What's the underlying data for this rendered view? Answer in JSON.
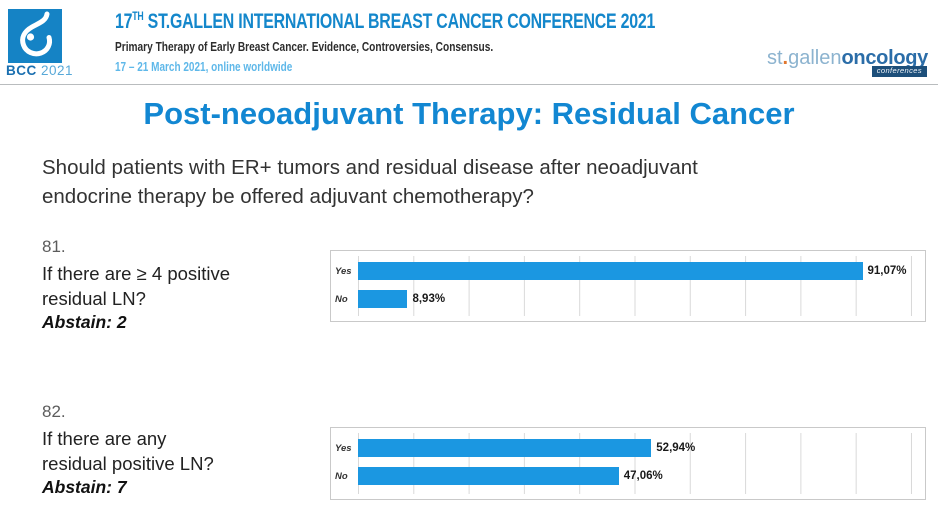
{
  "header": {
    "logo": {
      "abbr": "BCC",
      "year": "2021"
    },
    "title_num": "17",
    "title_sup": "TH",
    "title_rest": " ST.GALLEN INTERNATIONAL BREAST CANCER CONFERENCE 2021",
    "subtitle": "Primary Therapy of Early Breast Cancer. Evidence, Controversies, Consensus.",
    "dates": "17 – 21 March 2021, online worldwide",
    "brand": {
      "st": "st",
      "dot": ".",
      "gallen": "gallen",
      "oncology": "oncology",
      "conferences": "conferences"
    }
  },
  "slide": {
    "title": "Post-neoadjuvant Therapy: Residual Cancer",
    "question_line1": "Should patients with ER+ tumors and residual disease after neoadjuvant",
    "question_line2": "endocrine therapy be offered adjuvant chemotherapy?"
  },
  "polls": [
    {
      "number": "81.",
      "line1": "If there are ≥ 4 positive",
      "line2": "residual LN?",
      "abstain": "Abstain: 2"
    },
    {
      "number": "82.",
      "line1": "If there are any",
      "line2": "residual positive LN?",
      "abstain": "Abstain: 7"
    }
  ],
  "chart_data": [
    {
      "type": "bar",
      "orientation": "horizontal",
      "categories": [
        "Yes",
        "No"
      ],
      "values": [
        91.07,
        8.93
      ],
      "value_labels": [
        "91,07%",
        "8,93%"
      ],
      "xlim": [
        0,
        100
      ],
      "grid": true,
      "gridline_step_pct": 10,
      "legend": false,
      "bar_color": "#1b97e1",
      "title": "",
      "xlabel": "",
      "ylabel": ""
    },
    {
      "type": "bar",
      "orientation": "horizontal",
      "categories": [
        "Yes",
        "No"
      ],
      "values": [
        52.94,
        47.06
      ],
      "value_labels": [
        "52,94%",
        "47,06%"
      ],
      "xlim": [
        0,
        100
      ],
      "grid": true,
      "gridline_step_pct": 10,
      "legend": false,
      "bar_color": "#1b97e1",
      "title": "",
      "xlabel": "",
      "ylabel": ""
    }
  ],
  "colors": {
    "accent_blue": "#1287d2",
    "bar_blue": "#1b97e1",
    "header_blue": "#1487cb",
    "date_blue": "#5fb8e9",
    "logo_blue": "#1583c5",
    "brand_light_blue": "#8cb3cf",
    "brand_dark_blue": "#2b6da8",
    "brand_orange": "#e0762e"
  }
}
